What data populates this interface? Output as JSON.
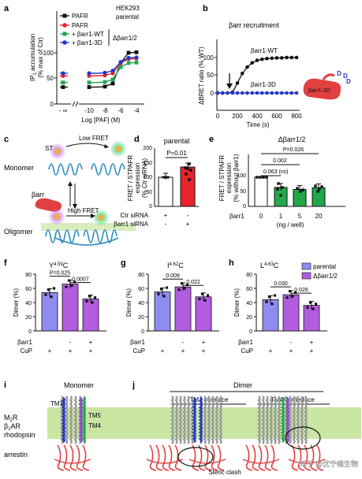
{
  "panel_labels": [
    "a",
    "b",
    "c",
    "d",
    "e",
    "f",
    "g",
    "h",
    "i",
    "j"
  ],
  "colors": {
    "black": "#111111",
    "red": "#e8232a",
    "green": "#22a84a",
    "blue": "#2437c8",
    "lavender": "#8f8cf0",
    "violet": "#b25ce0",
    "membrane": "#c9e6a3",
    "receptor_outline": "#2a8bbf",
    "arrestin_red": "#e04040"
  },
  "panel_a": {
    "legend": [
      {
        "label": "PAFR",
        "color": "#111111",
        "marker": "square"
      },
      {
        "label": "PAFR",
        "color": "#e8232a",
        "marker": "circle"
      },
      {
        "label": "+ βarr1-WT",
        "color": "#22a84a",
        "marker": "square"
      },
      {
        "label": "+ βarr1-3D",
        "color": "#2437c8",
        "marker": "circle"
      }
    ],
    "cell_label": "HEK293",
    "group_parental": "parental",
    "group_ko": "Δβarr1/2",
    "ylabel_line1": "IP",
    "ylabel_sub": "1",
    "ylabel_line1_rest": " accumulation",
    "ylabel_line2": "(% max of Ctr)",
    "xlabel": "Log [PAF] (M)",
    "yticks": [
      "0",
      "50",
      "100"
    ],
    "xticks": [
      "- ∞",
      "-10",
      "-8",
      "-6",
      "-4"
    ]
  },
  "panel_b": {
    "title": "βarr recruitment",
    "ylabel": "ΔBRET ratio (% WT)",
    "xlabel": "Time (s)",
    "label_wt": "βarr1-WT",
    "label_3d": "βarr1-3D",
    "cartoon_label": "βarr1-3D",
    "cartoon_d": "D",
    "yticks": [
      "0",
      "50",
      "100"
    ],
    "xticks": [
      "0",
      "200",
      "400",
      "600",
      "800"
    ]
  },
  "panel_c": {
    "monomer": "Monomer",
    "oligomer": "Oligomer",
    "barr": "βarr",
    "low_fret": "Low FRET",
    "high_fret": "High FRET",
    "st": "ST"
  },
  "panel_d": {
    "title": "parental",
    "ylabel_line1": "FRET / STPAFR",
    "ylabel_line2": "expression",
    "ylabel_line3": "(% Ctr siRNA)",
    "yticks": [
      "0",
      "50",
      "100",
      "150",
      "200"
    ],
    "pvalue": "P=0.01",
    "row1_label": "Ctr siRNA",
    "row2_label": "βarr1 siRNA",
    "row1_signs": [
      "+",
      "-"
    ],
    "row2_signs": [
      "-",
      "+"
    ]
  },
  "panel_e": {
    "title": "Δβarr1/2",
    "ylabel_line1": "FRET / STPAFR",
    "ylabel_line2": "expression",
    "ylabel_line3": "(% without βarr1)",
    "yticks": [
      "0",
      "50",
      "100"
    ],
    "categories": [
      "0",
      "1",
      "5",
      "20"
    ],
    "row_label": "βarr1",
    "xlabel": "(ng / well)",
    "p1": "0.063 (ns)",
    "p2": "0.002",
    "p3": "P=0.026"
  },
  "panel_f": {
    "title_pre": "Y",
    "title_sup": "4.59",
    "title_post": "C",
    "p1": "P=0.025",
    "p2": "0.0007"
  },
  "panel_g": {
    "title_pre": "I",
    "title_sup": "4.62",
    "title_post": "C",
    "p1": "0.009",
    "p2": "0.022"
  },
  "panel_h": {
    "title_pre": "L",
    "title_sup": "4.63",
    "title_post": "C",
    "p1": "0.030",
    "p2": "0.026",
    "legend": [
      {
        "label": "parental",
        "color": "#8f8cf0"
      },
      {
        "label": "Δβarr1/2",
        "color": "#b25ce0"
      }
    ]
  },
  "dimer_common": {
    "ylabel": "Dimer (%)",
    "yticks": [
      "0",
      "20",
      "40",
      "60",
      "80"
    ],
    "row_barr": "βarr1",
    "row_cup": "CuP",
    "barr_signs": [
      "",
      "-",
      "+"
    ],
    "cup_signs": [
      "+",
      "+",
      "+"
    ]
  },
  "panel_i": {
    "title": "Monomer",
    "tm1": "TM1",
    "tm5": "TM5",
    "tm4": "TM4"
  },
  "panel_j": {
    "title": "Dimer",
    "tm1_interface": "TM1 interface",
    "tm45_interface": "TM4/5 interface",
    "steric": "Steric clash"
  },
  "structure_labels": {
    "m2r": "M",
    "m2r_sub": "2",
    "m2r_post": "R",
    "b1ar": "β",
    "b1ar_sub": "1",
    "b1ar_post": "AR",
    "rhodopsin": "rhodopsin",
    "arrestin": "arrestin"
  },
  "watermark": "知乎 @优宁维生物",
  "chart_data": [
    {
      "panel": "a",
      "type": "line",
      "title": "",
      "xlabel": "Log [PAF] (M)",
      "ylabel": "IP1 accumulation (% max of Ctr)",
      "x": [
        -11,
        -10,
        -9,
        -8,
        -7,
        -6,
        -5,
        -4
      ],
      "ylim": [
        0,
        110
      ],
      "series": [
        {
          "name": "PAFR (parental)",
          "color": "#111111",
          "values": [
            33,
            33,
            33,
            34,
            40,
            80,
            100,
            101
          ]
        },
        {
          "name": "PAFR (Δβarr1/2)",
          "color": "#e8232a",
          "values": [
            55,
            55,
            55,
            56,
            60,
            80,
            88,
            89
          ]
        },
        {
          "name": "+ βarr1-WT",
          "color": "#22a84a",
          "values": [
            42,
            42,
            42,
            43,
            48,
            72,
            80,
            81
          ]
        },
        {
          "name": "+ βarr1-3D",
          "color": "#2437c8",
          "values": [
            60,
            60,
            60,
            61,
            65,
            82,
            90,
            91
          ]
        }
      ]
    },
    {
      "panel": "b",
      "type": "line",
      "title": "βarr recruitment",
      "xlabel": "Time (s)",
      "ylabel": "ΔBRET ratio (% WT)",
      "xlim": [
        0,
        800
      ],
      "ylim": [
        -10,
        110
      ],
      "series": [
        {
          "name": "βarr1-WT",
          "color": "#111111",
          "x": [
            0,
            50,
            100,
            150,
            200,
            250,
            300,
            350,
            400,
            450,
            500,
            550,
            600,
            650,
            700,
            750,
            800
          ],
          "values": [
            0,
            0,
            0,
            2,
            28,
            55,
            73,
            85,
            92,
            95,
            97,
            98,
            99,
            99,
            100,
            100,
            100
          ]
        },
        {
          "name": "βarr1-3D",
          "color": "#2437c8",
          "x": [
            0,
            50,
            100,
            150,
            200,
            250,
            300,
            350,
            400,
            450,
            500,
            550,
            600,
            650,
            700,
            750,
            800
          ],
          "values": [
            0,
            0,
            0,
            0,
            0,
            0,
            0,
            0,
            0,
            0,
            0,
            0,
            0,
            0,
            0,
            0,
            0
          ]
        }
      ]
    },
    {
      "panel": "d",
      "type": "bar",
      "categories": [
        "Ctr siRNA",
        "βarr1 siRNA"
      ],
      "values": [
        100,
        135
      ],
      "ylim": [
        0,
        200
      ]
    },
    {
      "panel": "e",
      "type": "bar",
      "categories": [
        "0",
        "1",
        "5",
        "20"
      ],
      "values": [
        100,
        65,
        58,
        64
      ],
      "ylim": [
        0,
        120
      ]
    },
    {
      "panel": "f",
      "type": "bar",
      "categories": [
        "parental",
        "Δβarr1/2 βarr1 -",
        "Δβarr1/2 βarr1 +"
      ],
      "values": [
        54,
        66,
        45
      ],
      "ylim": [
        0,
        80
      ]
    },
    {
      "panel": "g",
      "type": "bar",
      "categories": [
        "parental",
        "Δβarr1/2 βarr1 -",
        "Δβarr1/2 βarr1 +"
      ],
      "values": [
        55,
        62,
        48
      ],
      "ylim": [
        0,
        80
      ]
    },
    {
      "panel": "h",
      "type": "bar",
      "categories": [
        "parental",
        "Δβarr1/2 βarr1 -",
        "Δβarr1/2 βarr1 +"
      ],
      "values": [
        44,
        51,
        36
      ],
      "ylim": [
        0,
        80
      ]
    }
  ]
}
